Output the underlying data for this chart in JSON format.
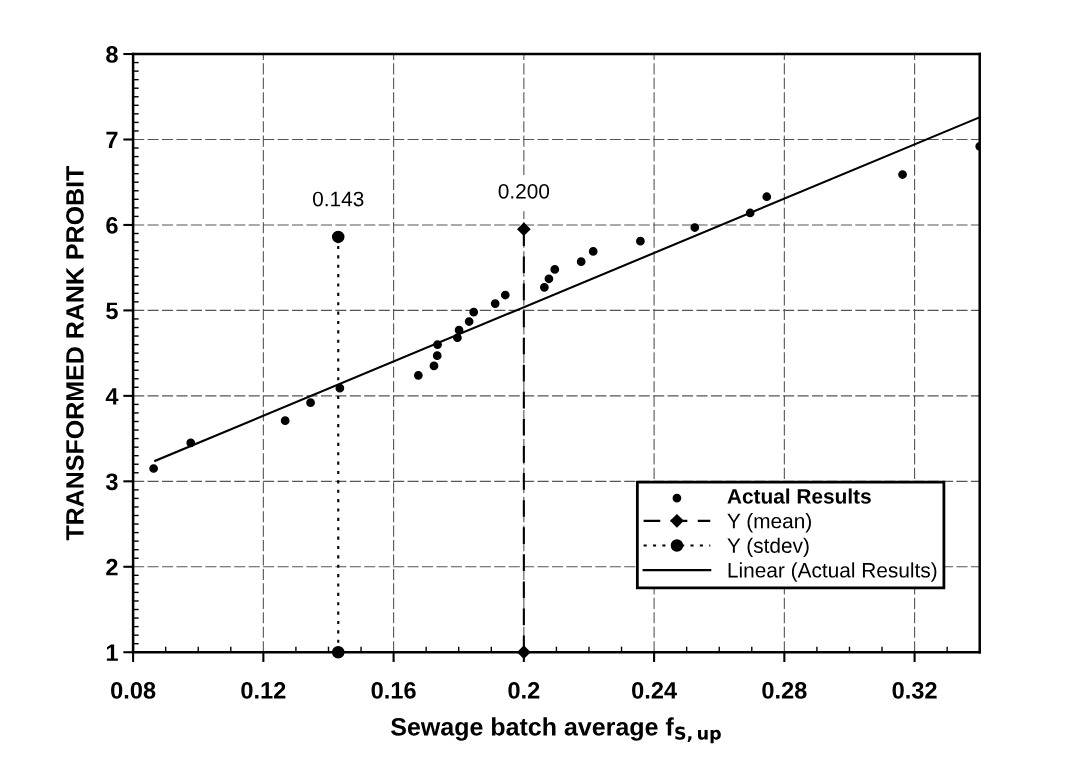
{
  "chart_data": {
    "type": "scatter",
    "xlabel": "Sewage batch average f$_{S,up}$",
    "ylabel": "TRANSFORMED RANK PROBIT",
    "xlim": [
      0.08,
      0.34
    ],
    "xticks": [
      {
        "value": 0.08,
        "label": "0.08"
      },
      {
        "value": 0.12,
        "label": "0.12"
      },
      {
        "value": 0.16,
        "label": "0.16"
      },
      {
        "value": 0.2,
        "label": "0.2"
      },
      {
        "value": 0.24,
        "label": "0.24"
      },
      {
        "value": 0.28,
        "label": "0.28"
      },
      {
        "value": 0.32,
        "label": "0.32"
      }
    ],
    "ylim": [
      1,
      8
    ],
    "yticks": [
      1,
      2,
      3,
      4,
      5,
      6,
      7,
      8
    ],
    "grid": true,
    "legend": "bottom right",
    "series": [
      {
        "name": "Actual Results",
        "color": "#000000",
        "marker": "circle",
        "x": [
          0.0863,
          0.0977,
          0.1267,
          0.1345,
          0.1435,
          0.1676,
          0.1724,
          0.1734,
          0.1735,
          0.1796,
          0.1801,
          0.1832,
          0.1846,
          0.1912,
          0.1943,
          0.2063,
          0.2077,
          0.2095,
          0.2176,
          0.2213,
          0.2358,
          0.2525,
          0.2695,
          0.2746,
          0.3163,
          0.34
        ],
        "values": [
          3.15,
          3.45,
          3.71,
          3.92,
          4.09,
          4.24,
          4.35,
          4.47,
          4.6,
          4.68,
          4.77,
          4.87,
          4.98,
          5.08,
          5.18,
          5.27,
          5.37,
          5.48,
          5.57,
          5.69,
          5.81,
          5.97,
          6.14,
          6.33,
          6.59,
          6.92
        ]
      },
      {
        "name": "Y (mean)",
        "type": "line",
        "color": "#000000",
        "marker": "diamond",
        "line_style": "dashed",
        "x": [
          0.2,
          0.2
        ],
        "values": [
          1,
          5.95
        ]
      },
      {
        "name": "Y (stdev)",
        "type": "line",
        "color": "#000000",
        "marker": "circle",
        "line_style": "dotted",
        "x": [
          0.143,
          0.143
        ],
        "values": [
          1,
          5.86
        ]
      },
      {
        "name": "Linear (Actual Results)",
        "type": "line",
        "color": "#000000",
        "marker": "none",
        "line_style": "solid",
        "x": [
          0.0868,
          0.34
        ],
        "values": [
          3.24,
          7.26
        ]
      }
    ],
    "annotations": [
      {
        "text": "0.143",
        "x": 0.143,
        "y": 5.86
      },
      {
        "text": "0.200",
        "x": 0.2,
        "y": 5.95
      }
    ]
  }
}
